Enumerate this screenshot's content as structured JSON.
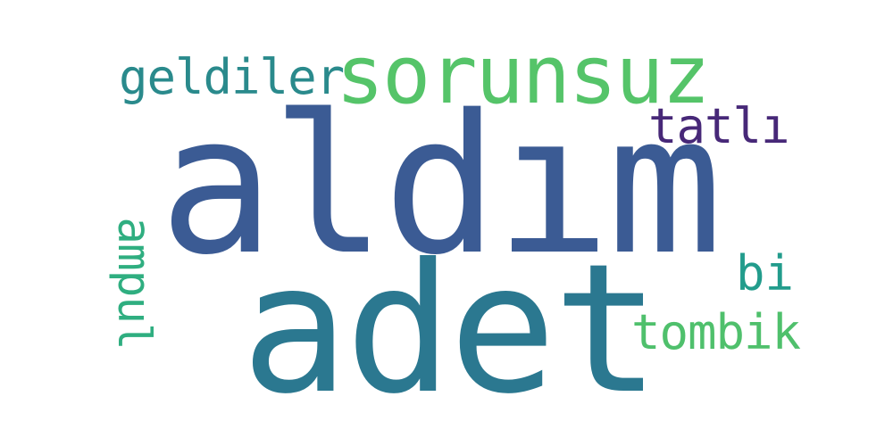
{
  "word_cloud": {
    "words": [
      {
        "text": "aldım",
        "color": "#3b5b94"
      },
      {
        "text": "adet",
        "color": "#2b7890"
      },
      {
        "text": "sorunsuz",
        "color": "#55c469"
      },
      {
        "text": "geldiler",
        "color": "#2a8a8c"
      },
      {
        "text": "tatlı",
        "color": "#472878"
      },
      {
        "text": "ampul",
        "color": "#2fae80"
      },
      {
        "text": "bi",
        "color": "#229c8c"
      },
      {
        "text": "tombik",
        "color": "#4fc06c"
      }
    ],
    "background_color": "#ffffff"
  }
}
